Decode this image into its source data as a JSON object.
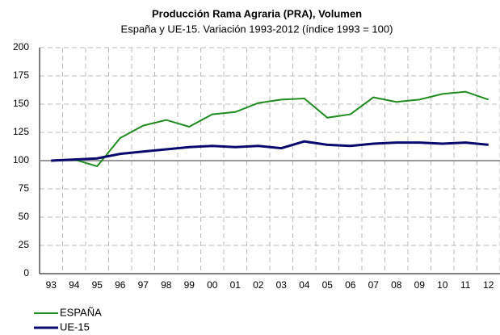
{
  "chart_data": {
    "type": "line",
    "title": "Producción Rama Agraria (PRA), Volumen",
    "subtitle": "España y UE-15. Variación 1993-2012 (índice 1993 = 100)",
    "categories": [
      "93",
      "94",
      "95",
      "96",
      "97",
      "98",
      "99",
      "00",
      "01",
      "02",
      "03",
      "04",
      "05",
      "06",
      "07",
      "08",
      "09",
      "10",
      "11",
      "12"
    ],
    "series": [
      {
        "name": "ESPAÑA",
        "color": "#1e8c1e",
        "values": [
          100,
          101,
          95,
          120,
          131,
          136,
          130,
          141,
          143,
          151,
          154,
          155,
          138,
          141,
          156,
          152,
          154,
          159,
          161,
          154
        ]
      },
      {
        "name": "UE-15",
        "color": "#0a0a6e",
        "values": [
          100,
          101,
          102,
          106,
          108,
          110,
          112,
          113,
          112,
          113,
          111,
          117,
          114,
          113,
          115,
          116,
          116,
          115,
          116,
          114
        ]
      }
    ],
    "reference_line": {
      "value": 100,
      "color": "#999999"
    },
    "ylim": [
      0,
      200
    ],
    "yticks": [
      0,
      25,
      50,
      75,
      100,
      125,
      150,
      175,
      200
    ],
    "grid": true,
    "legend": "bottom-left"
  }
}
